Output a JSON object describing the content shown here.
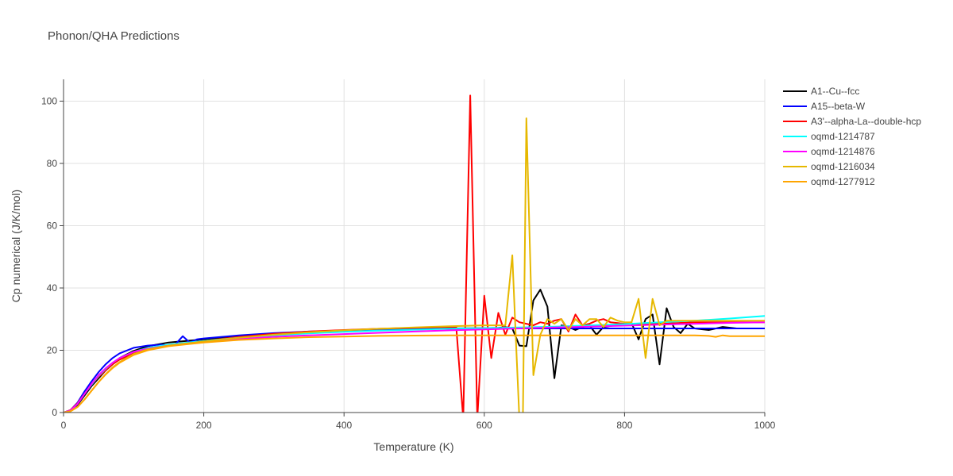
{
  "chart_data": {
    "type": "line",
    "title": "Phonon/QHA Predictions",
    "xlabel": "Temperature (K)",
    "ylabel": "Cp numerical (J/K/mol)",
    "xlim": [
      0,
      1000
    ],
    "ylim": [
      0,
      107
    ],
    "xticks": [
      0,
      200,
      400,
      600,
      800,
      1000
    ],
    "yticks": [
      0,
      20,
      40,
      60,
      80,
      100
    ],
    "grid": true,
    "legend_position": "top-right",
    "series": [
      {
        "name": "A1--Cu--fcc",
        "color": "#000000",
        "x": [
          0,
          10,
          20,
          30,
          40,
          50,
          60,
          70,
          80,
          100,
          120,
          150,
          200,
          250,
          300,
          350,
          400,
          450,
          500,
          550,
          600,
          620,
          630,
          640,
          650,
          660,
          670,
          680,
          690,
          700,
          710,
          720,
          730,
          740,
          750,
          760,
          770,
          780,
          800,
          810,
          820,
          830,
          840,
          850,
          860,
          870,
          880,
          890,
          900,
          920,
          940,
          960,
          980,
          1000
        ],
        "y": [
          0,
          0.5,
          2.5,
          5.5,
          8.5,
          11.0,
          13.5,
          15.5,
          17.5,
          19.8,
          21.3,
          22.5,
          23.5,
          24.5,
          25.3,
          25.9,
          26.3,
          26.6,
          26.8,
          27.0,
          27.1,
          27.2,
          27.4,
          27.0,
          21.5,
          21.3,
          36.0,
          39.5,
          34.0,
          11.0,
          28.0,
          27.5,
          26.5,
          27.5,
          28.0,
          25.0,
          27.5,
          27.8,
          28.5,
          28.8,
          23.5,
          30.0,
          31.5,
          15.5,
          33.5,
          27.5,
          25.5,
          28.5,
          27.0,
          26.5,
          27.5,
          27.0,
          27.0,
          27.0
        ]
      },
      {
        "name": "A15--beta-W",
        "color": "#0000ff",
        "x": [
          0,
          10,
          20,
          30,
          40,
          50,
          60,
          70,
          80,
          100,
          120,
          140,
          150,
          160,
          170,
          180,
          190,
          200,
          250,
          300,
          350,
          400,
          450,
          500,
          550,
          600,
          650,
          700,
          750,
          800,
          850,
          900,
          950,
          1000
        ],
        "y": [
          0,
          0.8,
          3.2,
          6.8,
          10.0,
          13.0,
          15.5,
          17.5,
          19.0,
          20.8,
          21.5,
          21.8,
          21.5,
          22.0,
          24.5,
          22.5,
          23.5,
          23.8,
          24.8,
          25.5,
          26.0,
          26.3,
          26.6,
          26.8,
          26.9,
          27.0,
          27.0,
          27.0,
          27.0,
          27.0,
          27.0,
          27.0,
          27.0,
          27.0
        ]
      },
      {
        "name": "A3'--alpha-La--double-hcp",
        "color": "#ff0000",
        "x": [
          0,
          10,
          20,
          30,
          40,
          50,
          60,
          70,
          80,
          100,
          120,
          150,
          200,
          250,
          300,
          350,
          400,
          450,
          500,
          550,
          560,
          570,
          580,
          590,
          600,
          610,
          620,
          630,
          640,
          650,
          660,
          670,
          680,
          690,
          700,
          710,
          720,
          730,
          740,
          750,
          760,
          770,
          780,
          800,
          850,
          900,
          950,
          1000
        ],
        "y": [
          0,
          0.8,
          3.0,
          6.0,
          9.0,
          11.5,
          13.5,
          15.5,
          17.0,
          19.0,
          20.3,
          21.5,
          23.0,
          24.3,
          25.3,
          26.0,
          26.5,
          26.9,
          27.2,
          27.5,
          27.5,
          -2.0,
          101.8,
          -2.0,
          37.5,
          17.5,
          32.0,
          25.0,
          30.5,
          29.0,
          28.5,
          28.0,
          29.0,
          28.5,
          29.5,
          30.0,
          26.0,
          31.5,
          28.0,
          28.5,
          29.5,
          30.0,
          29.0,
          28.5,
          28.5,
          29.0,
          29.0,
          29.0
        ]
      },
      {
        "name": "oqmd-1214787",
        "color": "#00ffff",
        "x": [
          0,
          10,
          20,
          30,
          40,
          50,
          60,
          70,
          80,
          100,
          120,
          150,
          200,
          250,
          300,
          350,
          400,
          450,
          500,
          550,
          600,
          650,
          700,
          750,
          800,
          850,
          900,
          950,
          1000
        ],
        "y": [
          0,
          0.6,
          2.8,
          6.0,
          9.0,
          11.8,
          14.0,
          16.0,
          17.5,
          19.5,
          20.8,
          21.8,
          23.0,
          24.0,
          24.8,
          25.4,
          25.9,
          26.3,
          26.6,
          26.9,
          27.1,
          27.3,
          27.6,
          28.0,
          28.4,
          29.0,
          29.5,
          30.2,
          31.0
        ]
      },
      {
        "name": "oqmd-1214876",
        "color": "#ff00ff",
        "x": [
          0,
          10,
          20,
          30,
          40,
          50,
          60,
          70,
          80,
          100,
          120,
          150,
          200,
          250,
          300,
          350,
          400,
          450,
          500,
          550,
          600,
          650,
          700,
          750,
          800,
          850,
          900,
          950,
          1000
        ],
        "y": [
          0,
          0.7,
          2.8,
          6.0,
          9.2,
          12.0,
          14.2,
          16.0,
          17.5,
          19.5,
          20.5,
          21.5,
          22.8,
          23.6,
          24.3,
          24.8,
          25.2,
          25.6,
          26.0,
          26.4,
          26.7,
          27.0,
          27.3,
          27.6,
          27.9,
          28.2,
          28.5,
          28.8,
          29.0
        ]
      },
      {
        "name": "oqmd-1216034",
        "color": "#e6b800",
        "x": [
          0,
          10,
          20,
          30,
          40,
          50,
          60,
          70,
          80,
          100,
          120,
          150,
          200,
          250,
          300,
          350,
          400,
          450,
          500,
          550,
          600,
          620,
          630,
          640,
          645,
          650,
          655,
          660,
          670,
          680,
          690,
          700,
          710,
          720,
          730,
          740,
          750,
          760,
          770,
          780,
          790,
          800,
          810,
          820,
          830,
          840,
          850,
          860,
          880,
          900,
          950,
          1000
        ],
        "y": [
          0,
          0.4,
          1.8,
          4.2,
          7.0,
          9.8,
          12.3,
          14.5,
          16.2,
          18.8,
          20.3,
          21.5,
          22.8,
          24.0,
          25.0,
          25.8,
          26.4,
          26.9,
          27.3,
          27.7,
          28.0,
          28.0,
          28.0,
          50.5,
          24.0,
          -2.0,
          -2.0,
          94.5,
          12.0,
          25.0,
          30.0,
          28.5,
          30.0,
          26.5,
          30.0,
          28.0,
          30.0,
          30.0,
          27.5,
          30.5,
          29.5,
          29.0,
          29.0,
          36.5,
          17.5,
          36.5,
          28.0,
          29.5,
          29.5,
          29.5,
          29.5,
          29.5
        ]
      },
      {
        "name": "oqmd-1277912",
        "color": "#ffa500",
        "x": [
          0,
          10,
          20,
          30,
          40,
          50,
          60,
          70,
          80,
          100,
          120,
          150,
          200,
          250,
          300,
          350,
          400,
          450,
          500,
          550,
          600,
          650,
          700,
          750,
          800,
          850,
          900,
          920,
          930,
          940,
          950,
          1000
        ],
        "y": [
          0,
          0.4,
          1.8,
          4.2,
          7.0,
          9.8,
          12.2,
          14.3,
          16.0,
          18.5,
          20.0,
          21.3,
          22.5,
          23.3,
          23.8,
          24.2,
          24.4,
          24.6,
          24.7,
          24.8,
          24.8,
          24.8,
          24.8,
          24.8,
          24.8,
          24.8,
          24.8,
          24.6,
          24.3,
          24.8,
          24.5,
          24.5
        ]
      }
    ]
  }
}
